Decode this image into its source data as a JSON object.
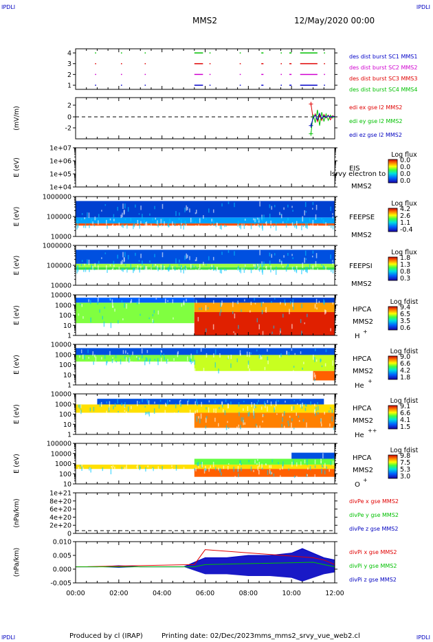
{
  "corner_label": "IPDLI",
  "header": {
    "mission": "MMS2",
    "datetime": "12/May/2020 00:00"
  },
  "footer": {
    "produced_by": "Produced by cl (IRAP)",
    "printing_date": "Printing date: 02/Dec/2023",
    "filename": "mms_mms2_srvy_vue_web2.cl"
  },
  "colors": {
    "mms1": "#0000c8",
    "mms2": "#d000d0",
    "mms3": "#e00000",
    "mms4": "#00c000",
    "x": "#e00000",
    "y": "#00c000",
    "z": "#0000c0"
  },
  "x_axis": {
    "ticks": [
      "00:00",
      "02:00",
      "04:00",
      "06:00",
      "08:00",
      "10:00",
      "12:00"
    ]
  },
  "panels": {
    "burst": {
      "yticks": [
        "1",
        "2",
        "3",
        "4"
      ],
      "legend": [
        "des dist burst SC1 MMS1",
        "des dist burst SC2 MMS2",
        "des dist burst SC3 MMS3",
        "des dist burst SC4 MMS4"
      ]
    },
    "edi": {
      "ylabel": "(mV/m)",
      "yticks": [
        "2",
        "0",
        "-2"
      ],
      "legend": [
        "edi ex gse l2 MMS2",
        "edi ey gse l2 MMS2",
        "edi ez gse l2 MMS2"
      ]
    },
    "eis": {
      "ylabel": "E (eV)",
      "yticks": [
        "1e+07",
        "1e+06",
        "1e+05",
        "1e+04"
      ],
      "name": "EIS",
      "overlay": "lsrvy electron to",
      "sc": "MMS2",
      "cb_title": "Log flux",
      "cb_ticks": [
        "0.0",
        "0.0",
        "0.0",
        "0.0"
      ]
    },
    "feepse": {
      "ylabel": "E (eV)",
      "yticks": [
        "1000000",
        "100000",
        "10000"
      ],
      "name": "FEEPSE",
      "sc": "MMS2",
      "cb_title": "Log flux",
      "cb_ticks": [
        "4.2",
        "2.6",
        "1.1",
        "-0.4"
      ]
    },
    "feepsi": {
      "ylabel": "E (eV)",
      "yticks": [
        "1000000",
        "100000",
        "10000"
      ],
      "name": "FEEPSI",
      "sc": "MMS2",
      "cb_title": "Log flux",
      "cb_ticks": [
        "1.8",
        "1.3",
        "0.8",
        "0.3"
      ]
    },
    "hpca_h": {
      "ylabel": "E (eV)",
      "yticks": [
        "10000",
        "1000",
        "100",
        "10",
        "1"
      ],
      "name": "HPCA",
      "sc": "MMS2",
      "species": "H",
      "charge": "+",
      "cb_title": "Log fdist",
      "cb_ticks": [
        "9.4",
        "6.5",
        "3.5",
        "0.6"
      ]
    },
    "hpca_he": {
      "ylabel": "E (eV)",
      "yticks": [
        "10000",
        "1000",
        "100",
        "10",
        "1"
      ],
      "name": "HPCA",
      "sc": "MMS2",
      "species": "He",
      "charge": "+",
      "cb_title": "Log fdist",
      "cb_ticks": [
        "9.0",
        "6.6",
        "4.2",
        "1.8"
      ]
    },
    "hpca_hepp": {
      "ylabel": "E (eV)",
      "yticks": [
        "10000",
        "1000",
        "100",
        "10",
        "1"
      ],
      "name": "HPCA",
      "sc": "MMS2",
      "species": "He",
      "charge": "++",
      "cb_title": "Log fdist",
      "cb_ticks": [
        "9.1",
        "6.6",
        "4.1",
        "1.5"
      ]
    },
    "hpca_o": {
      "ylabel": "E (eV)",
      "yticks": [
        "100000",
        "10000",
        "1000",
        "100",
        "10"
      ],
      "name": "HPCA",
      "sc": "MMS2",
      "species": "O",
      "charge": "+",
      "cb_title": "Log fdist",
      "cb_ticks": [
        "9.8",
        "7.5",
        "5.3",
        "3.0"
      ]
    },
    "divpe": {
      "ylabel": "(nPa/km)",
      "yticks": [
        "1e+21",
        "8e+20",
        "6e+20",
        "4e+20",
        "2e+20",
        "0"
      ],
      "legend": [
        "divPe x gse MMS2",
        "divPe y gse MMS2",
        "divPe z gse MMS2"
      ]
    },
    "divpi": {
      "ylabel": "(nPa/km)",
      "yticks": [
        "0.010",
        "0.005",
        "0.000",
        "-0.005"
      ],
      "legend": [
        "divPi x gse MMS2",
        "divPi y gse MMS2",
        "divPi z gse MMS2"
      ]
    }
  },
  "chart_data": [
    {
      "type": "scatter",
      "panel": "burst",
      "x_unit": "hours",
      "xlim": [
        0,
        12
      ],
      "ylim": [
        0.5,
        4.5
      ],
      "series": [
        {
          "name": "des dist burst SC1 MMS1",
          "y": 1,
          "intervals": [
            [
              0.9,
              0.95
            ],
            [
              2.1,
              2.15
            ],
            [
              3.2,
              3.25
            ],
            [
              5.5,
              5.9
            ],
            [
              6.2,
              6.25
            ],
            [
              7.6,
              7.65
            ],
            [
              8.6,
              8.7
            ],
            [
              9.5,
              9.55
            ],
            [
              9.9,
              10.0
            ],
            [
              10.4,
              11.2
            ],
            [
              11.5,
              11.55
            ]
          ]
        },
        {
          "name": "des dist burst SC2 MMS2",
          "y": 2,
          "intervals": [
            [
              0.9,
              0.95
            ],
            [
              2.1,
              2.15
            ],
            [
              3.2,
              3.25
            ],
            [
              5.5,
              5.9
            ],
            [
              6.2,
              6.25
            ],
            [
              7.6,
              7.65
            ],
            [
              8.6,
              8.7
            ],
            [
              9.5,
              9.55
            ],
            [
              9.9,
              10.0
            ],
            [
              10.4,
              11.2
            ],
            [
              11.5,
              11.55
            ]
          ]
        },
        {
          "name": "des dist burst SC3 MMS3",
          "y": 3,
          "intervals": [
            [
              0.9,
              0.95
            ],
            [
              2.1,
              2.15
            ],
            [
              3.2,
              3.25
            ],
            [
              5.5,
              5.9
            ],
            [
              6.2,
              6.25
            ],
            [
              7.6,
              7.65
            ],
            [
              8.6,
              8.7
            ],
            [
              9.5,
              9.55
            ],
            [
              9.9,
              10.0
            ],
            [
              10.4,
              11.2
            ],
            [
              11.5,
              11.55
            ]
          ]
        },
        {
          "name": "des dist burst SC4 MMS4",
          "y": 4,
          "intervals": [
            [
              0.9,
              0.95
            ],
            [
              2.1,
              2.15
            ],
            [
              3.2,
              3.25
            ],
            [
              5.5,
              5.9
            ],
            [
              6.2,
              6.25
            ],
            [
              7.6,
              7.65
            ],
            [
              8.6,
              8.7
            ],
            [
              9.5,
              9.55
            ],
            [
              9.9,
              10.0
            ],
            [
              10.4,
              11.2
            ],
            [
              11.5,
              11.55
            ]
          ]
        }
      ]
    },
    {
      "type": "line",
      "panel": "edi",
      "x_unit": "hours",
      "xlim": [
        0,
        12
      ],
      "ylim": [
        -3.5,
        3.5
      ],
      "series": [
        {
          "name": "edi ex gse l2 MMS2",
          "x": [
            10.9,
            11.0,
            11.1,
            11.2,
            11.3,
            11.4,
            11.5,
            11.6,
            11.7,
            11.8,
            11.9,
            12.0
          ],
          "y": [
            2.2,
            -0.3,
            0.5,
            -0.8,
            0.3,
            -0.6,
            0.4,
            -0.2,
            0.3,
            -0.5,
            0.2,
            0.0
          ]
        },
        {
          "name": "edi ey gse l2 MMS2",
          "x": [
            10.9,
            11.0,
            11.1,
            11.2,
            11.3,
            11.4,
            11.5,
            11.6,
            11.7,
            11.8,
            11.9,
            12.0
          ],
          "y": [
            -2.9,
            0.4,
            -1.0,
            1.2,
            -1.5,
            0.8,
            -0.8,
            0.5,
            -0.6,
            0.3,
            -0.2,
            0.1
          ]
        },
        {
          "name": "edi ez gse l2 MMS2",
          "x": [
            10.9,
            11.0,
            11.1,
            11.2,
            11.3,
            11.4,
            11.5,
            11.6,
            11.7,
            11.8,
            11.9,
            12.0
          ],
          "y": [
            -1.5,
            -0.2,
            0.3,
            -0.5,
            0.6,
            -0.3,
            0.2,
            -0.1,
            0.2,
            -0.1,
            0.1,
            0.0
          ]
        }
      ]
    },
    {
      "type": "heatmap",
      "panel": "feepse",
      "x_unit": "hours",
      "xlim": [
        0,
        12
      ],
      "ylim": [
        10000,
        1000000
      ],
      "yscale": "log",
      "bands": [
        [
          0,
          12,
          35000,
          45000,
          "#ff5000"
        ],
        [
          0,
          12,
          45000,
          90000,
          "#00a0ff"
        ],
        [
          0,
          12,
          90000,
          600000,
          "#0040d0"
        ]
      ]
    },
    {
      "type": "heatmap",
      "panel": "feepsi",
      "x_unit": "hours",
      "xlim": [
        0,
        12
      ],
      "ylim": [
        10000,
        1000000
      ],
      "yscale": "log",
      "bands": [
        [
          0,
          12,
          60000,
          80000,
          "#40e040"
        ],
        [
          0,
          12,
          80000,
          120000,
          "#a0ff40"
        ],
        [
          0,
          12,
          120000,
          600000,
          "#0050e0"
        ]
      ]
    },
    {
      "type": "heatmap",
      "panel": "hpca_h",
      "x_unit": "hours",
      "xlim": [
        0,
        12
      ],
      "ylim": [
        1,
        20000
      ],
      "yscale": "log",
      "bands": [
        [
          0,
          5.5,
          20,
          3000,
          "#80ff40"
        ],
        [
          0,
          5.5,
          3000,
          10000,
          "#0060ff"
        ],
        [
          5.5,
          12,
          1,
          300,
          "#e02000"
        ],
        [
          5.5,
          12,
          300,
          3000,
          "#ffa000"
        ],
        [
          5.5,
          12,
          3000,
          10000,
          "#0040d0"
        ]
      ]
    },
    {
      "type": "heatmap",
      "panel": "hpca_he",
      "x_unit": "hours",
      "xlim": [
        0,
        12
      ],
      "ylim": [
        1,
        20000
      ],
      "yscale": "log",
      "bands": [
        [
          0,
          12,
          1500,
          8000,
          "#0050e0"
        ],
        [
          0,
          5.5,
          300,
          1500,
          "#80ff40"
        ],
        [
          5.5,
          12,
          30,
          1500,
          "#c8ff20"
        ],
        [
          11.0,
          12,
          3,
          30,
          "#ff6000"
        ]
      ]
    },
    {
      "type": "heatmap",
      "panel": "hpca_hepp",
      "x_unit": "hours",
      "xlim": [
        0,
        12
      ],
      "ylim": [
        1,
        20000
      ],
      "yscale": "log",
      "bands": [
        [
          1.0,
          11.5,
          1500,
          6000,
          "#0050e0"
        ],
        [
          0,
          12,
          200,
          1500,
          "#ffe000"
        ],
        [
          5.5,
          12,
          5,
          200,
          "#ff8000"
        ]
      ]
    },
    {
      "type": "heatmap",
      "panel": "hpca_o",
      "x_unit": "hours",
      "xlim": [
        0,
        12
      ],
      "ylim": [
        10,
        100000
      ],
      "yscale": "log",
      "bands": [
        [
          0,
          12,
          300,
          800,
          "#ffe000"
        ],
        [
          5.5,
          12,
          50,
          300,
          "#ff6000"
        ],
        [
          5.5,
          12,
          800,
          3000,
          "#60ff40"
        ],
        [
          10.0,
          12,
          3000,
          12000,
          "#0050e0"
        ]
      ]
    },
    {
      "type": "line",
      "panel": "divpi",
      "x_unit": "hours",
      "xlim": [
        0,
        12
      ],
      "ylim": [
        -0.007,
        0.011
      ],
      "series": [
        {
          "name": "divPi z gse MMS2",
          "x": [
            0,
            1,
            2,
            3,
            4,
            5,
            5.5,
            6,
            7,
            8,
            9,
            10,
            10.5,
            11,
            11.5,
            12
          ],
          "y": [
            0.0,
            0.0,
            0.0005,
            0.0,
            0.0,
            0.0,
            0.002,
            0.004,
            0.004,
            0.005,
            0.005,
            0.006,
            0.008,
            0.006,
            0.004,
            0.003
          ]
        },
        {
          "name": "divPi x gse MMS2",
          "x": [
            0,
            5.5,
            6,
            11,
            11.5,
            12
          ],
          "y": [
            0.0,
            0.001,
            0.0075,
            0.004,
            0.003,
            0.001
          ]
        },
        {
          "name": "divPi y gse MMS2",
          "x": [
            0,
            5.5,
            6,
            11,
            11.5,
            12
          ],
          "y": [
            0.0,
            0.0,
            0.001,
            0.002,
            0.001,
            0.0
          ]
        }
      ]
    }
  ]
}
